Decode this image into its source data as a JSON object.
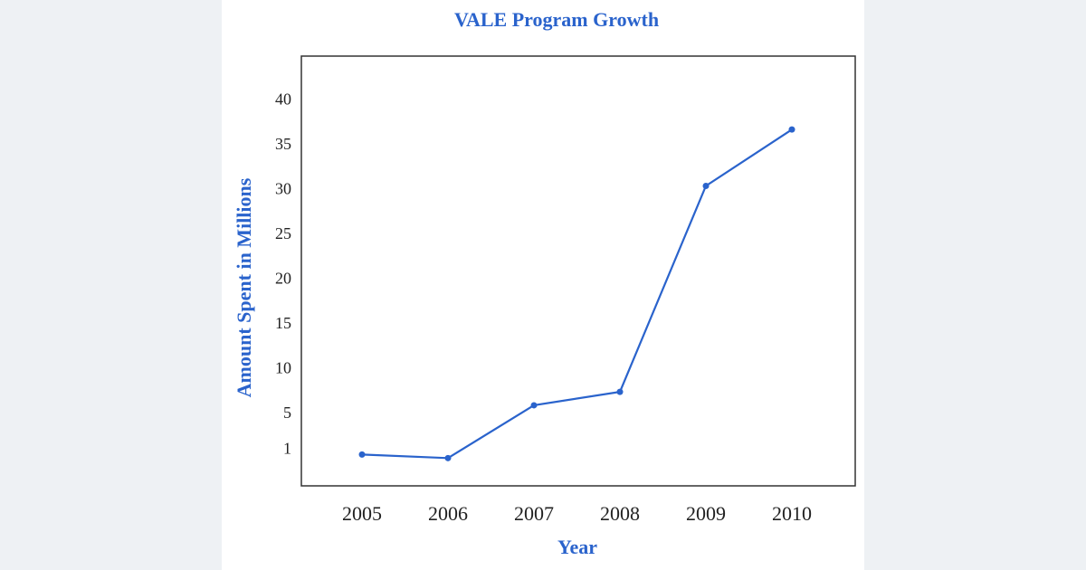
{
  "chart_data": {
    "type": "line",
    "title": "VALE Program Growth",
    "x_label": "Year",
    "y_label": "Amount Spent  in Millions",
    "categories": [
      "2005",
      "2006",
      "2007",
      "2008",
      "2009",
      "2010"
    ],
    "series": [
      {
        "name": "Amount Spent",
        "color": "#2a63cc",
        "values": [
          0.5,
          0.1,
          6,
          7.5,
          30.5,
          36.8
        ]
      }
    ],
    "ylim": [
      -3,
      45
    ],
    "yticks": [
      1,
      5,
      10,
      15,
      20,
      25,
      30,
      35,
      40
    ],
    "grid": false,
    "legend": false
  }
}
